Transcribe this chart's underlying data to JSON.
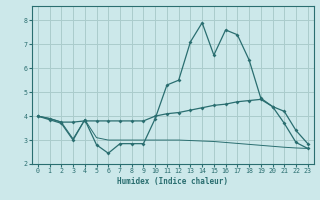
{
  "xlabel": "Humidex (Indice chaleur)",
  "bg_color": "#cce8ea",
  "grid_color": "#aacccc",
  "line_color": "#2a6e70",
  "xlim": [
    -0.5,
    23.5
  ],
  "ylim": [
    2.0,
    8.6
  ],
  "yticks": [
    2,
    3,
    4,
    5,
    6,
    7,
    8
  ],
  "xticks": [
    0,
    1,
    2,
    3,
    4,
    5,
    6,
    7,
    8,
    9,
    10,
    11,
    12,
    13,
    14,
    15,
    16,
    17,
    18,
    19,
    20,
    21,
    22,
    23
  ],
  "series1_x": [
    0,
    1,
    2,
    3,
    4,
    5,
    6,
    7,
    8,
    9,
    10,
    11,
    12,
    13,
    14,
    15,
    16,
    17,
    18,
    19,
    20,
    21,
    22,
    23
  ],
  "series1_y": [
    4.0,
    3.85,
    3.7,
    3.0,
    3.85,
    2.8,
    2.45,
    2.85,
    2.85,
    2.85,
    3.9,
    5.3,
    5.5,
    7.1,
    7.9,
    6.55,
    7.6,
    7.4,
    6.35,
    4.75,
    4.4,
    3.7,
    2.9,
    2.65
  ],
  "series2_x": [
    0,
    1,
    2,
    3,
    4,
    5,
    6,
    7,
    8,
    9,
    10,
    11,
    12,
    13,
    14,
    15,
    16,
    17,
    18,
    19,
    20,
    21,
    22,
    23
  ],
  "series2_y": [
    4.0,
    3.9,
    3.75,
    3.75,
    3.8,
    3.8,
    3.8,
    3.8,
    3.8,
    3.8,
    4.0,
    4.1,
    4.15,
    4.25,
    4.35,
    4.45,
    4.5,
    4.6,
    4.65,
    4.7,
    4.4,
    4.2,
    3.4,
    2.85
  ],
  "series3_x": [
    0,
    1,
    2,
    3,
    4,
    5,
    6,
    7,
    8,
    9,
    10,
    11,
    12,
    13,
    14,
    15,
    16,
    17,
    18,
    19,
    20,
    21,
    22,
    23
  ],
  "series3_y": [
    4.0,
    3.9,
    3.75,
    3.05,
    3.85,
    3.1,
    3.0,
    3.0,
    3.0,
    3.0,
    3.0,
    3.0,
    3.0,
    2.98,
    2.96,
    2.94,
    2.9,
    2.86,
    2.82,
    2.78,
    2.74,
    2.7,
    2.67,
    2.65
  ]
}
